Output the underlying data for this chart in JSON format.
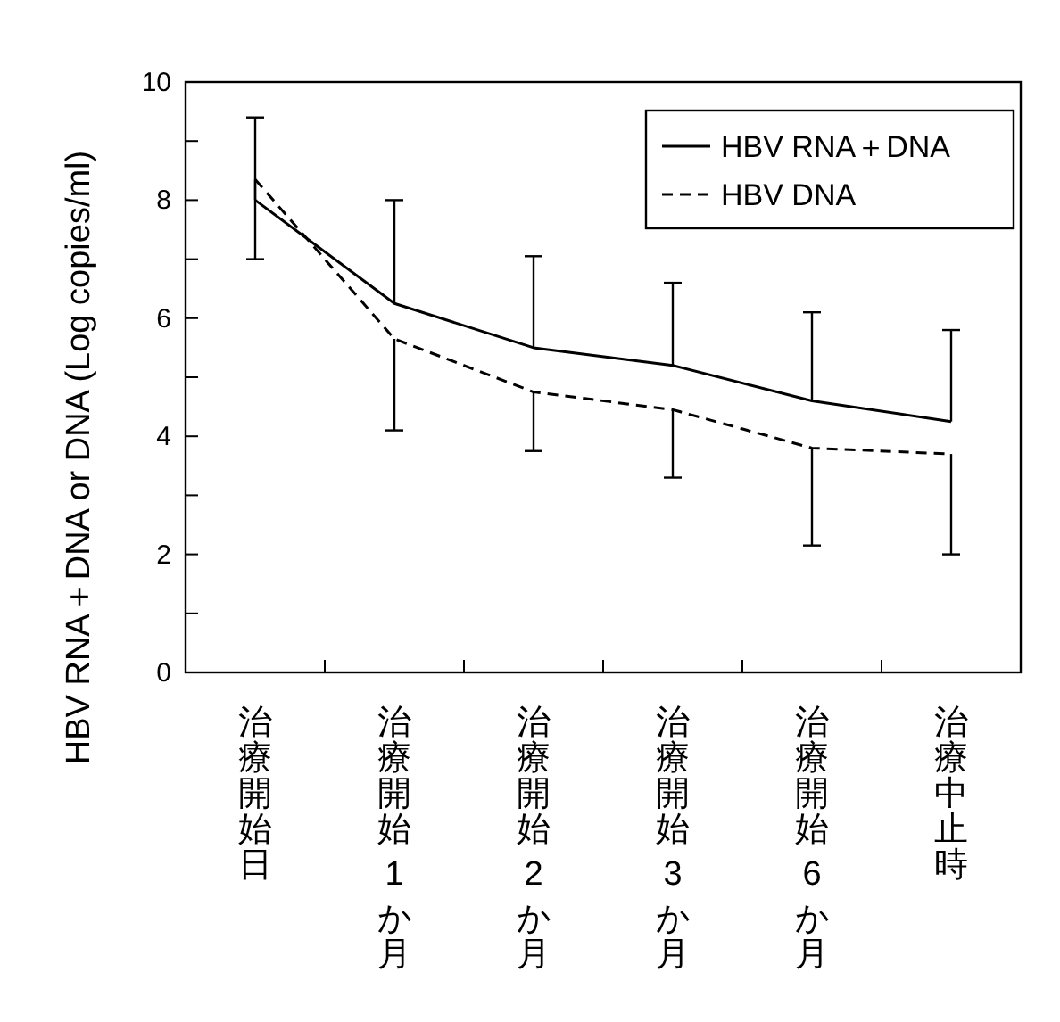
{
  "chart_data": {
    "type": "line",
    "ylabel": "HBV RNA＋DNA or DNA (Log copies/ml)",
    "categories": [
      "治療開始日",
      "治療開始 1 か月",
      "治療開始 2 か月",
      "治療開始 3 か月",
      "治療開始 6 か月",
      "治療中止時"
    ],
    "series": [
      {
        "name": "HBV RNA＋DNA",
        "color": "#000000",
        "line_style": "solid",
        "values": [
          8.0,
          6.25,
          5.5,
          5.2,
          4.6,
          4.25
        ],
        "errors": [
          [
            8.0,
            9.4
          ],
          [
            6.25,
            8.0
          ],
          [
            5.5,
            7.05
          ],
          [
            5.2,
            6.6
          ],
          [
            4.6,
            6.1
          ],
          [
            4.25,
            5.8
          ]
        ]
      },
      {
        "name": "HBV DNA",
        "color": "#000000",
        "line_style": "dashed",
        "values": [
          8.35,
          5.65,
          4.75,
          4.45,
          3.8,
          3.7
        ],
        "errors": [
          [
            7.0,
            8.35
          ],
          [
            4.1,
            5.65
          ],
          [
            3.75,
            4.75
          ],
          [
            3.3,
            4.45
          ],
          [
            2.15,
            3.8
          ],
          [
            2.0,
            3.7
          ]
        ]
      }
    ],
    "ylim": [
      0,
      10
    ],
    "yticks": [
      0,
      {
        "value": 1,
        "label": null
      },
      2,
      {
        "value": 3,
        "label": null
      },
      4,
      {
        "value": 5,
        "label": null
      },
      6,
      {
        "value": 7,
        "label": null
      },
      8,
      {
        "value": 9,
        "label": null
      },
      10
    ],
    "grid": false,
    "legend": "top right",
    "marker": "none"
  }
}
